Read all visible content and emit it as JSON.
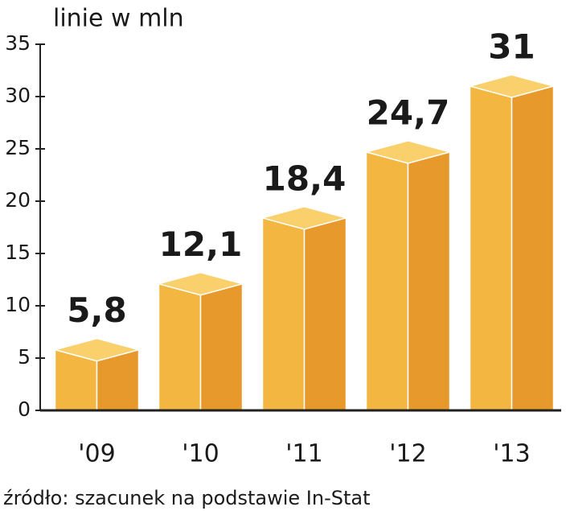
{
  "chart_data": {
    "type": "bar3d",
    "title": "linie w mln",
    "categories": [
      "'09",
      "'10",
      "'11",
      "'12",
      "'13"
    ],
    "values": [
      5.8,
      12.1,
      18.4,
      24.7,
      31
    ],
    "value_labels": [
      "5,8",
      "12,1",
      "18,4",
      "24,7",
      "31"
    ],
    "colors": {
      "front": "#f3b641",
      "side": "#e8992b",
      "top": "#f9d06c"
    },
    "ylim": [
      0,
      35
    ],
    "yticks": [
      0,
      5,
      10,
      15,
      20,
      25,
      30,
      35
    ],
    "source": "źródło: szacunek na podstawie In-Stat"
  }
}
